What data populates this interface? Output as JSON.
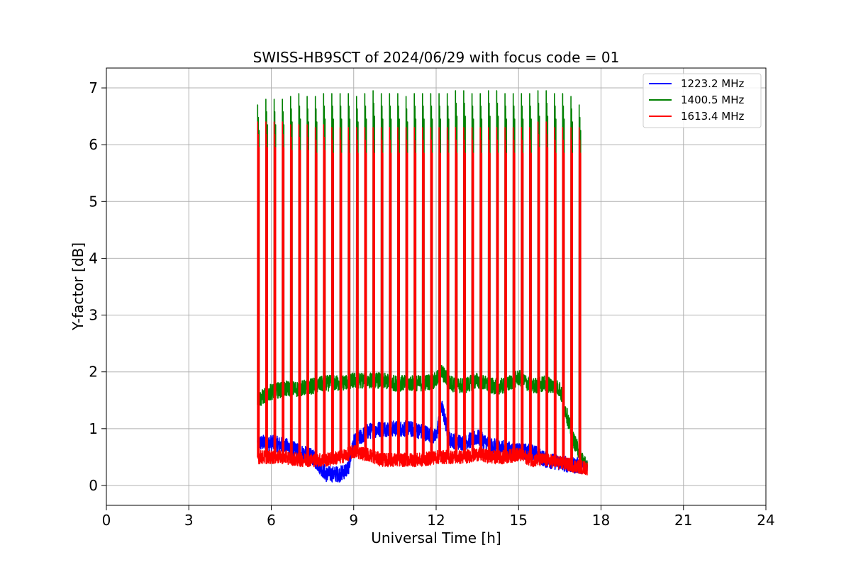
{
  "chart_data": {
    "type": "line",
    "title": "SWISS-HB9SCT of 2024/06/29 with focus code = 01",
    "xlabel": "Universal Time [h]",
    "ylabel": "Y-factor [dB]",
    "xlim": [
      0,
      24
    ],
    "ylim": [
      -0.35,
      7.35
    ],
    "xticks": [
      0,
      3,
      6,
      9,
      12,
      15,
      18,
      21,
      24
    ],
    "yticks": [
      0,
      1,
      2,
      3,
      4,
      5,
      6,
      7
    ],
    "grid": true,
    "legend_position": "top-right",
    "time_range_h": [
      5.5,
      17.5
    ],
    "calibration_spike_times_h": [
      5.5,
      5.8,
      6.1,
      6.4,
      6.7,
      7.0,
      7.3,
      7.6,
      7.9,
      8.2,
      8.5,
      8.8,
      9.1,
      9.4,
      9.7,
      10.0,
      10.3,
      10.6,
      10.9,
      11.2,
      11.5,
      11.8,
      12.1,
      12.4,
      12.7,
      13.0,
      13.3,
      13.6,
      13.9,
      14.2,
      14.5,
      14.8,
      15.1,
      15.4,
      15.7,
      16.0,
      16.3,
      16.6,
      16.9,
      17.2
    ],
    "series": [
      {
        "name": "1223.2 MHz",
        "color": "#0000ff",
        "baseline_x": [
          5.5,
          6.0,
          6.5,
          7.0,
          7.5,
          8.0,
          8.5,
          8.8,
          9.0,
          9.5,
          10.0,
          10.5,
          11.0,
          11.5,
          12.0,
          12.2,
          12.5,
          13.0,
          13.5,
          14.0,
          14.5,
          15.0,
          15.5,
          16.0,
          16.5,
          17.0,
          17.5
        ],
        "baseline_y": [
          0.75,
          0.75,
          0.7,
          0.6,
          0.5,
          0.2,
          0.2,
          0.3,
          0.75,
          0.95,
          1.0,
          1.0,
          1.0,
          0.95,
          0.85,
          1.4,
          0.8,
          0.75,
          0.85,
          0.7,
          0.65,
          0.6,
          0.6,
          0.45,
          0.4,
          0.35,
          0.35
        ],
        "peak": null
      },
      {
        "name": "1400.5 MHz",
        "color": "#008000",
        "baseline_x": [
          5.5,
          6.0,
          6.5,
          7.0,
          7.5,
          8.0,
          8.5,
          9.0,
          9.5,
          10.0,
          10.5,
          11.0,
          11.5,
          12.0,
          12.2,
          12.5,
          13.0,
          13.5,
          14.0,
          14.5,
          15.0,
          15.5,
          16.0,
          16.5,
          17.0,
          17.5
        ],
        "baseline_y": [
          1.5,
          1.65,
          1.7,
          1.7,
          1.75,
          1.8,
          1.8,
          1.85,
          1.85,
          1.85,
          1.8,
          1.8,
          1.8,
          1.85,
          2.0,
          1.8,
          1.75,
          1.85,
          1.75,
          1.75,
          1.9,
          1.75,
          1.8,
          1.7,
          0.8,
          0.3
        ],
        "peak": [
          6.7,
          6.8,
          6.8,
          6.8,
          6.85,
          6.9,
          6.85,
          6.85,
          6.9,
          6.9,
          6.9,
          6.9,
          6.85,
          6.9,
          6.95,
          6.9,
          6.9,
          6.9,
          6.85,
          6.9,
          6.9,
          6.9,
          6.9,
          6.9,
          6.95,
          6.95,
          6.9,
          6.9,
          6.95,
          6.95,
          6.9,
          6.9,
          6.9,
          6.9,
          6.95,
          6.95,
          6.9,
          6.9,
          6.85,
          6.7
        ]
      },
      {
        "name": "1613.4 MHz",
        "color": "#ff0000",
        "baseline_x": [
          5.5,
          6.0,
          6.5,
          7.0,
          7.5,
          8.0,
          8.5,
          8.8,
          9.0,
          9.5,
          10.0,
          10.5,
          11.0,
          11.5,
          12.0,
          12.5,
          13.0,
          13.5,
          14.0,
          14.5,
          15.0,
          15.5,
          16.0,
          16.5,
          17.0,
          17.5
        ],
        "baseline_y": [
          0.5,
          0.5,
          0.5,
          0.45,
          0.45,
          0.45,
          0.5,
          0.55,
          0.6,
          0.55,
          0.45,
          0.45,
          0.45,
          0.45,
          0.5,
          0.5,
          0.5,
          0.55,
          0.5,
          0.5,
          0.55,
          0.45,
          0.45,
          0.4,
          0.35,
          0.3
        ],
        "peak": [
          6.4,
          6.4,
          6.4,
          6.4,
          6.35,
          6.35,
          6.35,
          6.3,
          6.35,
          6.3,
          6.3,
          6.3,
          6.3,
          6.3,
          6.3,
          6.3,
          6.3,
          6.3,
          6.3,
          6.3,
          6.3,
          6.3,
          6.3,
          6.3,
          6.3,
          6.3,
          6.3,
          6.3,
          6.3,
          6.3,
          6.3,
          6.3,
          6.3,
          6.3,
          6.4,
          6.4,
          6.3,
          6.3,
          6.3,
          6.3
        ]
      }
    ]
  }
}
